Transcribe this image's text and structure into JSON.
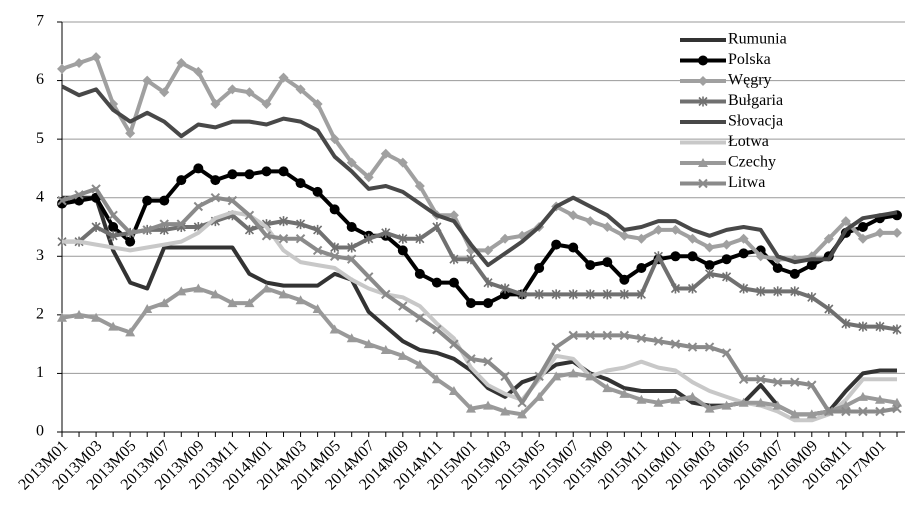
{
  "chart_data": {
    "type": "line",
    "categories": [
      "2013M01",
      null,
      "2013M03",
      null,
      "2013M05",
      null,
      "2013M07",
      null,
      "2013M09",
      null,
      "2013M11",
      null,
      "2014M01",
      null,
      "2014M03",
      null,
      "2014M05",
      null,
      "2014M07",
      null,
      "2014M09",
      null,
      "2014M11",
      null,
      "2015M01",
      null,
      "2015M03",
      null,
      "2015M05",
      null,
      "2015M07",
      null,
      "2015M09",
      null,
      "2015M11",
      null,
      "2016M01",
      null,
      "2016M03",
      null,
      "2016M05",
      null,
      "2016M07",
      null,
      "2016M09",
      null,
      "2016M11",
      null,
      "2017M01",
      null
    ],
    "ylim": [
      0,
      7
    ],
    "yticks": [
      0,
      1,
      2,
      3,
      4,
      5,
      6,
      7
    ],
    "grid": true,
    "legend": "top-right",
    "series": [
      {
        "name": "Rumunia",
        "color": "#333333",
        "values": [
          4.0,
          4.0,
          4.0,
          3.1,
          2.55,
          2.45,
          3.15,
          3.15,
          3.15,
          3.15,
          3.15,
          2.7,
          2.55,
          2.5,
          2.5,
          2.5,
          2.7,
          2.6,
          2.05,
          1.8,
          1.55,
          1.4,
          1.35,
          1.25,
          1.05,
          0.75,
          0.6,
          0.85,
          0.95,
          1.15,
          1.2,
          1.0,
          0.9,
          0.75,
          0.7,
          0.7,
          0.7,
          0.5,
          0.45,
          0.45,
          0.5,
          0.8,
          0.45,
          0.3,
          0.3,
          0.35,
          0.7,
          1.0,
          1.05,
          1.05
        ]
      },
      {
        "name": "Polska",
        "color": "#000000",
        "marker": "circle",
        "values": [
          3.9,
          3.95,
          4.0,
          3.5,
          3.25,
          3.95,
          3.95,
          4.3,
          4.5,
          4.3,
          4.4,
          4.4,
          4.45,
          4.45,
          4.25,
          4.1,
          3.8,
          3.5,
          3.35,
          3.35,
          3.1,
          2.7,
          2.55,
          2.55,
          2.2,
          2.2,
          2.35,
          2.35,
          2.8,
          3.2,
          3.15,
          2.85,
          2.9,
          2.6,
          2.8,
          2.95,
          3.0,
          3.0,
          2.85,
          2.95,
          3.05,
          3.1,
          2.8,
          2.7,
          2.85,
          3.0,
          3.4,
          3.5,
          3.65,
          3.7
        ]
      },
      {
        "name": "Węgry",
        "color": "#a0a0a0",
        "marker": "diamond",
        "values": [
          6.2,
          6.3,
          6.4,
          5.6,
          5.1,
          6.0,
          5.8,
          6.3,
          6.15,
          5.6,
          5.85,
          5.8,
          5.6,
          6.05,
          5.85,
          5.6,
          5.0,
          4.6,
          4.35,
          4.75,
          4.6,
          4.2,
          3.7,
          3.7,
          3.1,
          3.1,
          3.3,
          3.35,
          3.5,
          3.85,
          3.7,
          3.6,
          3.5,
          3.35,
          3.3,
          3.45,
          3.45,
          3.3,
          3.15,
          3.2,
          3.3,
          3.0,
          2.95,
          2.95,
          3.0,
          3.3,
          3.6,
          3.3,
          3.4,
          3.4
        ]
      },
      {
        "name": "Bułgaria",
        "color": "#707070",
        "marker": "star",
        "values": [
          3.25,
          3.25,
          3.5,
          3.35,
          3.4,
          3.45,
          3.45,
          3.5,
          3.5,
          3.6,
          3.7,
          3.45,
          3.55,
          3.6,
          3.55,
          3.45,
          3.15,
          3.15,
          3.3,
          3.4,
          3.3,
          3.3,
          3.5,
          2.95,
          2.95,
          2.55,
          2.45,
          2.35,
          2.35,
          2.35,
          2.35,
          2.35,
          2.35,
          2.35,
          2.35,
          3.0,
          2.45,
          2.45,
          2.7,
          2.65,
          2.45,
          2.4,
          2.4,
          2.4,
          2.3,
          2.1,
          1.85,
          1.8,
          1.8,
          1.75
        ]
      },
      {
        "name": "Słovacja",
        "color": "#484848",
        "values": [
          5.9,
          5.75,
          5.85,
          5.5,
          5.3,
          5.45,
          5.3,
          5.05,
          5.25,
          5.2,
          5.3,
          5.3,
          5.25,
          5.35,
          5.3,
          5.15,
          4.7,
          4.45,
          4.15,
          4.2,
          4.1,
          3.9,
          3.7,
          3.6,
          3.2,
          2.85,
          3.05,
          3.25,
          3.5,
          3.85,
          4.0,
          3.85,
          3.7,
          3.45,
          3.5,
          3.6,
          3.6,
          3.45,
          3.35,
          3.45,
          3.5,
          3.45,
          3.0,
          2.9,
          2.95,
          2.95,
          3.45,
          3.65,
          3.7,
          3.75
        ]
      },
      {
        "name": "Łotwa",
        "color": "#c8c8c8",
        "values": [
          3.25,
          3.25,
          3.2,
          3.15,
          3.1,
          3.15,
          3.2,
          3.25,
          3.4,
          3.65,
          3.75,
          3.7,
          3.5,
          3.1,
          2.9,
          2.85,
          2.8,
          2.6,
          2.45,
          2.35,
          2.3,
          2.15,
          1.85,
          1.6,
          1.1,
          0.8,
          0.65,
          0.55,
          0.9,
          1.3,
          1.25,
          0.95,
          1.05,
          1.1,
          1.2,
          1.1,
          1.05,
          0.85,
          0.7,
          0.6,
          0.5,
          0.45,
          0.35,
          0.2,
          0.2,
          0.3,
          0.55,
          0.9,
          0.9,
          0.9
        ]
      },
      {
        "name": "Czechy",
        "color": "#999999",
        "marker": "triangle",
        "values": [
          1.95,
          2.0,
          1.95,
          1.8,
          1.7,
          2.1,
          2.2,
          2.4,
          2.45,
          2.35,
          2.2,
          2.2,
          2.45,
          2.35,
          2.25,
          2.1,
          1.75,
          1.6,
          1.5,
          1.4,
          1.3,
          1.15,
          0.9,
          0.7,
          0.4,
          0.45,
          0.35,
          0.3,
          0.6,
          0.95,
          1.0,
          0.95,
          0.75,
          0.65,
          0.55,
          0.5,
          0.55,
          0.6,
          0.4,
          0.45,
          0.5,
          0.5,
          0.45,
          0.3,
          0.3,
          0.35,
          0.45,
          0.6,
          0.55,
          0.5
        ]
      },
      {
        "name": "Litwa",
        "color": "#8a8a8a",
        "marker": "x",
        "values": [
          3.95,
          4.05,
          4.15,
          3.7,
          3.4,
          3.45,
          3.55,
          3.55,
          3.85,
          4.0,
          3.95,
          3.7,
          3.35,
          3.3,
          3.3,
          3.1,
          3.0,
          2.95,
          2.65,
          2.35,
          2.15,
          1.95,
          1.75,
          1.5,
          1.25,
          1.2,
          0.95,
          0.5,
          0.95,
          1.45,
          1.65,
          1.65,
          1.65,
          1.65,
          1.6,
          1.55,
          1.5,
          1.45,
          1.45,
          1.35,
          0.9,
          0.9,
          0.85,
          0.85,
          0.8,
          0.35,
          0.35,
          0.35,
          0.35,
          0.4
        ]
      }
    ]
  }
}
